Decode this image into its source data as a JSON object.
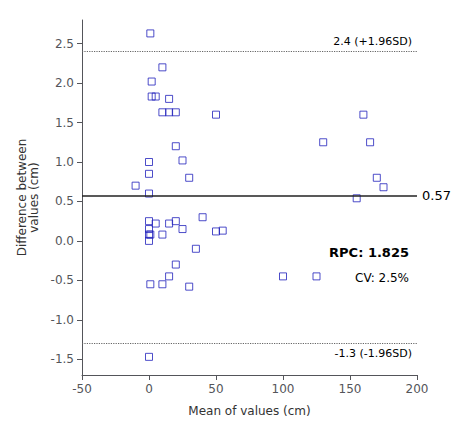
{
  "chart_data": {
    "type": "scatter",
    "x": [
      -10,
      0,
      0,
      0,
      1,
      2,
      2,
      5,
      10,
      10,
      15,
      15,
      20,
      20,
      25,
      30,
      50,
      130,
      160,
      165,
      170,
      175,
      0,
      0,
      0,
      0,
      1,
      1,
      5,
      10,
      10,
      15,
      15,
      20,
      20,
      25,
      30,
      35,
      40,
      50,
      55,
      100,
      125,
      155,
      0
    ],
    "values": [
      0.7,
      0.6,
      1.0,
      0.85,
      2.63,
      2.02,
      1.83,
      1.83,
      2.2,
      1.63,
      1.8,
      1.63,
      1.63,
      1.2,
      1.02,
      0.8,
      1.6,
      1.25,
      1.6,
      1.25,
      0.8,
      0.68,
      0.25,
      0.15,
      0.08,
      0.0,
      0.08,
      -0.55,
      0.22,
      0.08,
      -0.55,
      0.22,
      -0.45,
      0.25,
      -0.3,
      0.15,
      -0.58,
      -0.1,
      0.3,
      0.12,
      0.13,
      -0.45,
      -0.45,
      0.54,
      -1.47
    ],
    "color": "#2020bb",
    "marker": "square",
    "xlabel": "Mean of values (cm)",
    "ylabel": "Difference between\nvalues (cm)",
    "xlim": [
      -50,
      200
    ],
    "ylim": [
      -1.7,
      2.8
    ],
    "xticks": [
      -50,
      0,
      50,
      100,
      150,
      200
    ],
    "yticks": [
      -1.5,
      {
        "value": -1.0,
        "label": "-1.0"
      },
      -0.5,
      {
        "value": 0.0,
        "label": "0.0"
      },
      0.5,
      {
        "value": 1.0,
        "label": "1.0"
      },
      1.5,
      {
        "value": 2.0,
        "label": "2.0"
      },
      2.5
    ],
    "grid": false,
    "hlines": [
      {
        "value": 0.57,
        "label": "0.57",
        "line_style": "solid",
        "color": "#222222"
      },
      {
        "value": 2.4,
        "label": "2.4 (+1.96SD)",
        "line_style": "dotted",
        "color": "#666666"
      },
      {
        "value": -1.3,
        "label": "-1.3 (-1.96SD)",
        "line_style": "dotted",
        "color": "#666666"
      }
    ],
    "annotations": [
      "RPC: 1.825",
      "CV: 2.5%"
    ]
  }
}
